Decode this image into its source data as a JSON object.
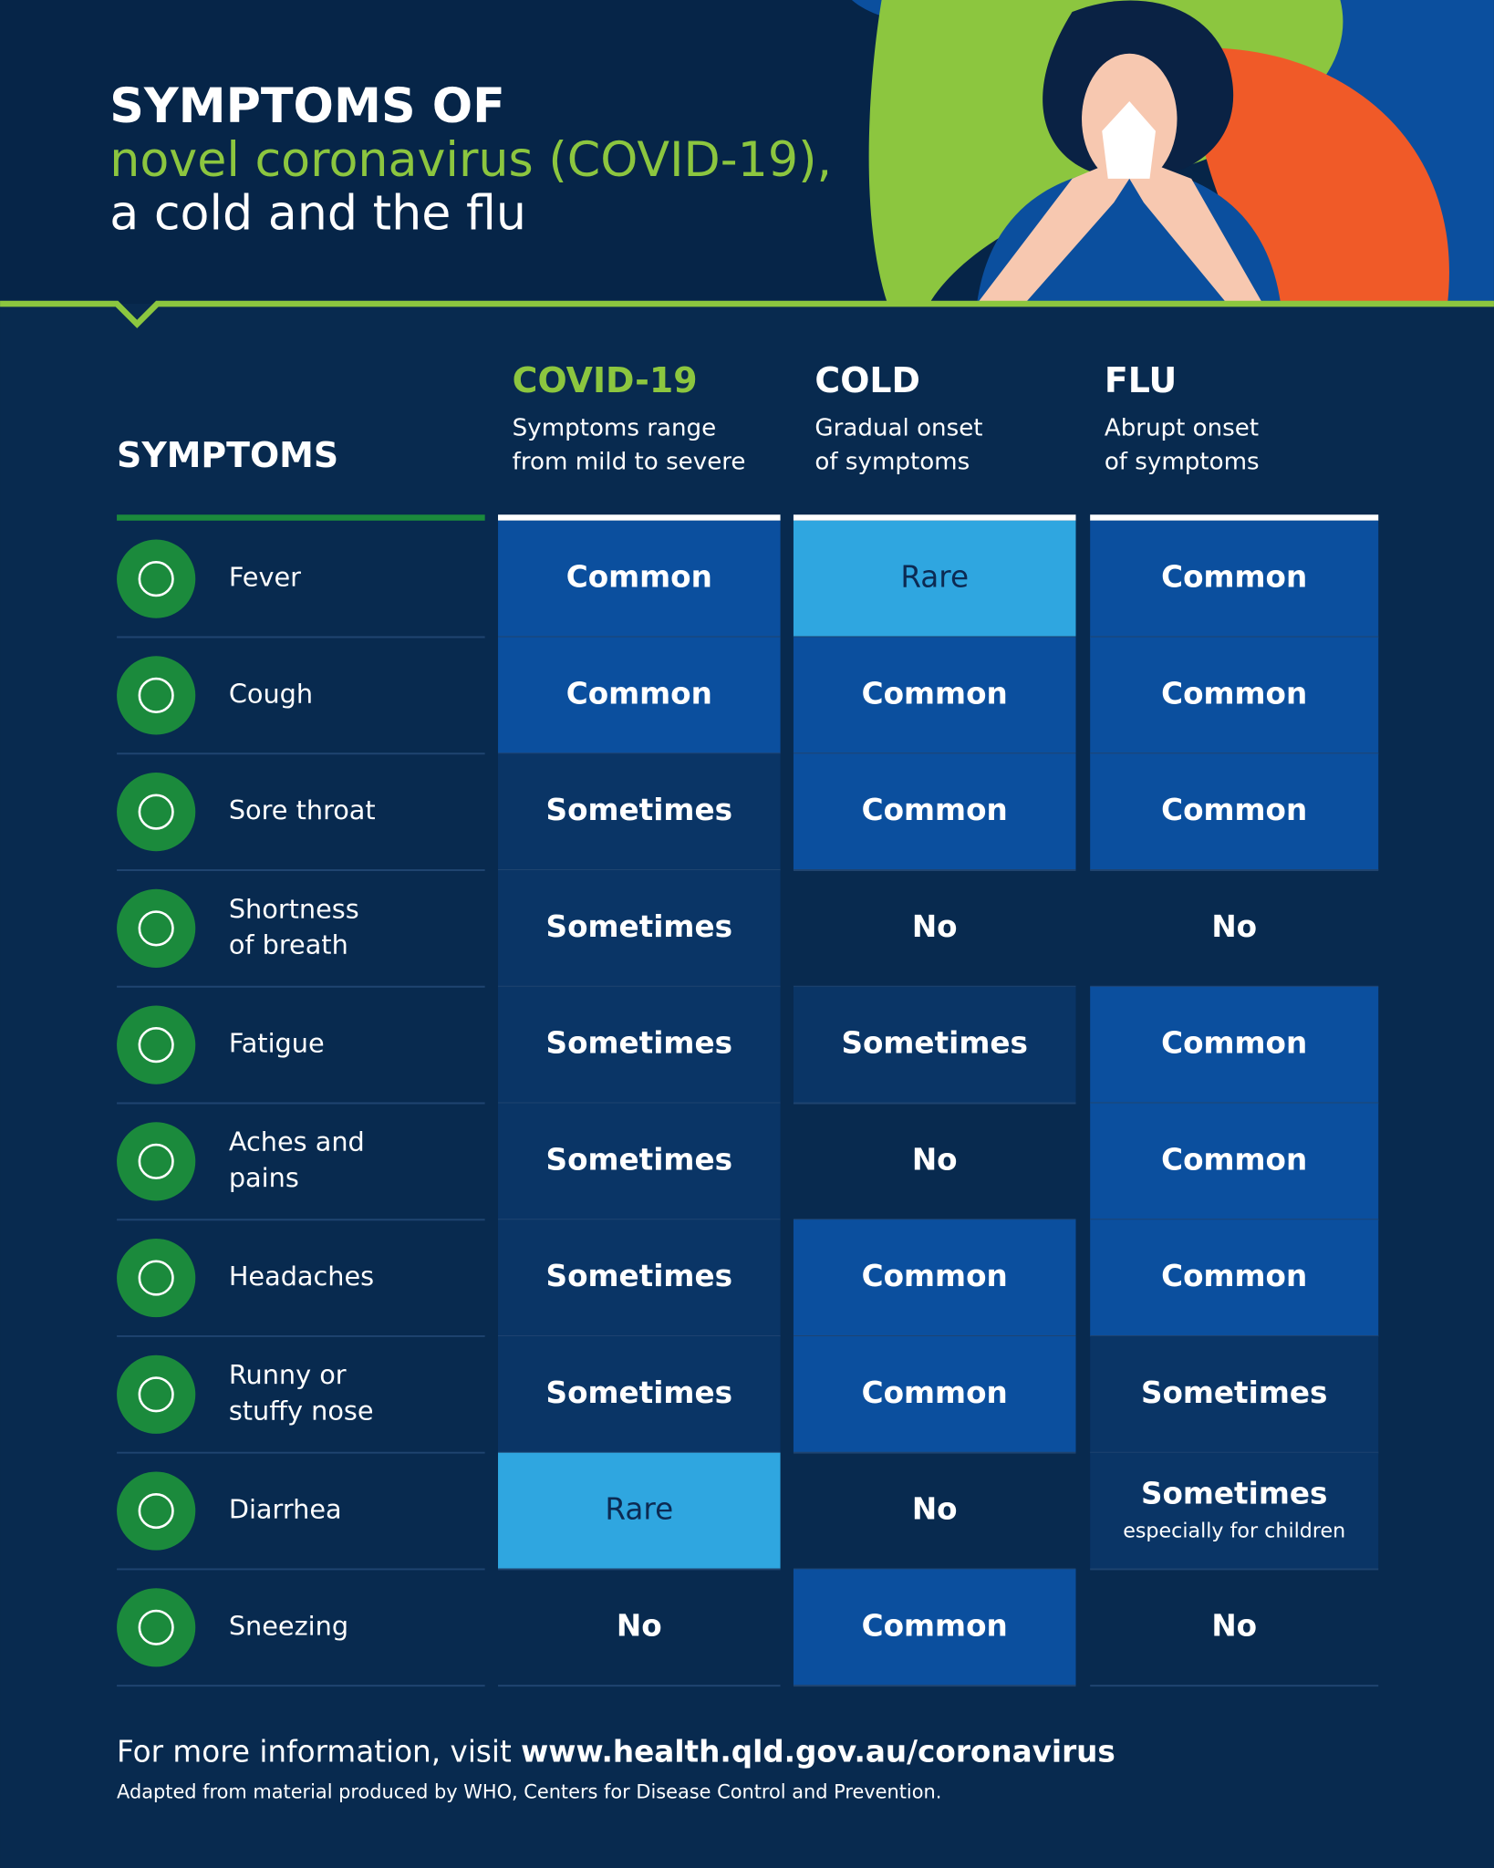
{
  "header": {
    "title_lines": [
      "SYMPTOMS OF",
      "novel coronavirus (COVID-19),",
      "a cold and the flu"
    ]
  },
  "table": {
    "corner": "SYMPTOMS",
    "columns": [
      {
        "name": "COVID-19",
        "name_color": "#8cc63f",
        "description": [
          "Symptoms range",
          "from mild to severe"
        ]
      },
      {
        "name": "COLD",
        "name_color": "#ffffff",
        "description": [
          "Gradual onset",
          "of symptoms"
        ]
      },
      {
        "name": "FLU",
        "name_color": "#ffffff",
        "description": [
          "Abrupt onset",
          "of symptoms"
        ]
      }
    ],
    "rows": [
      {
        "label": [
          "Fever"
        ],
        "cells": [
          {
            "text": "Common",
            "fill": "#0b4f9e",
            "ink": "#ffffff"
          },
          {
            "text": "Rare",
            "fill": "#2fa6e0",
            "ink": "#0c2a52"
          },
          {
            "text": "Common",
            "fill": "#0b4f9e",
            "ink": "#ffffff"
          }
        ]
      },
      {
        "label": [
          "Cough"
        ],
        "cells": [
          {
            "text": "Common",
            "fill": "#0b4f9e",
            "ink": "#ffffff"
          },
          {
            "text": "Common",
            "fill": "#0b4f9e",
            "ink": "#ffffff"
          },
          {
            "text": "Common",
            "fill": "#0b4f9e",
            "ink": "#ffffff"
          }
        ]
      },
      {
        "label": [
          "Sore throat"
        ],
        "cells": [
          {
            "text": "Sometimes",
            "fill": "#0a3566",
            "ink": "#ffffff"
          },
          {
            "text": "Common",
            "fill": "#0b4f9e",
            "ink": "#ffffff"
          },
          {
            "text": "Common",
            "fill": "#0b4f9e",
            "ink": "#ffffff"
          }
        ]
      },
      {
        "label": [
          "Shortness",
          "of breath"
        ],
        "cells": [
          {
            "text": "Sometimes",
            "fill": "#0a3566",
            "ink": "#ffffff"
          },
          {
            "text": "No",
            "fill": "none",
            "ink": "#ffffff"
          },
          {
            "text": "No",
            "fill": "none",
            "ink": "#ffffff"
          }
        ]
      },
      {
        "label": [
          "Fatigue"
        ],
        "cells": [
          {
            "text": "Sometimes",
            "fill": "#0a3566",
            "ink": "#ffffff"
          },
          {
            "text": "Sometimes",
            "fill": "#0a3566",
            "ink": "#ffffff"
          },
          {
            "text": "Common",
            "fill": "#0b4f9e",
            "ink": "#ffffff"
          }
        ]
      },
      {
        "label": [
          "Aches and",
          "pains"
        ],
        "cells": [
          {
            "text": "Sometimes",
            "fill": "#0a3566",
            "ink": "#ffffff"
          },
          {
            "text": "No",
            "fill": "none",
            "ink": "#ffffff"
          },
          {
            "text": "Common",
            "fill": "#0b4f9e",
            "ink": "#ffffff"
          }
        ]
      },
      {
        "label": [
          "Headaches"
        ],
        "cells": [
          {
            "text": "Sometimes",
            "fill": "#0a3566",
            "ink": "#ffffff"
          },
          {
            "text": "Common",
            "fill": "#0b4f9e",
            "ink": "#ffffff"
          },
          {
            "text": "Common",
            "fill": "#0b4f9e",
            "ink": "#ffffff"
          }
        ]
      },
      {
        "label": [
          "Runny or",
          "stuffy nose"
        ],
        "cells": [
          {
            "text": "Sometimes",
            "fill": "#0a3566",
            "ink": "#ffffff"
          },
          {
            "text": "Common",
            "fill": "#0b4f9e",
            "ink": "#ffffff"
          },
          {
            "text": "Sometimes",
            "fill": "#0a3566",
            "ink": "#ffffff"
          }
        ]
      },
      {
        "label": [
          "Diarrhea"
        ],
        "cells": [
          {
            "text": "Rare",
            "fill": "#2fa6e0",
            "ink": "#0c2a52"
          },
          {
            "text": "No",
            "fill": "none",
            "ink": "#ffffff"
          },
          {
            "text": "Sometimes",
            "note": "especially for children",
            "fill": "#0a3566",
            "ink": "#ffffff"
          }
        ]
      },
      {
        "label": [
          "Sneezing"
        ],
        "cells": [
          {
            "text": "No",
            "fill": "none",
            "ink": "#ffffff"
          },
          {
            "text": "Common",
            "fill": "#0b4f9e",
            "ink": "#ffffff"
          },
          {
            "text": "No",
            "fill": "none",
            "ink": "#ffffff"
          }
        ]
      }
    ]
  },
  "footer": {
    "lead": "For more information, visit ",
    "url": "www.health.qld.gov.au/coronavirus",
    "credit": "Adapted from material produced by WHO, Centers for Disease Control and Prevention."
  }
}
